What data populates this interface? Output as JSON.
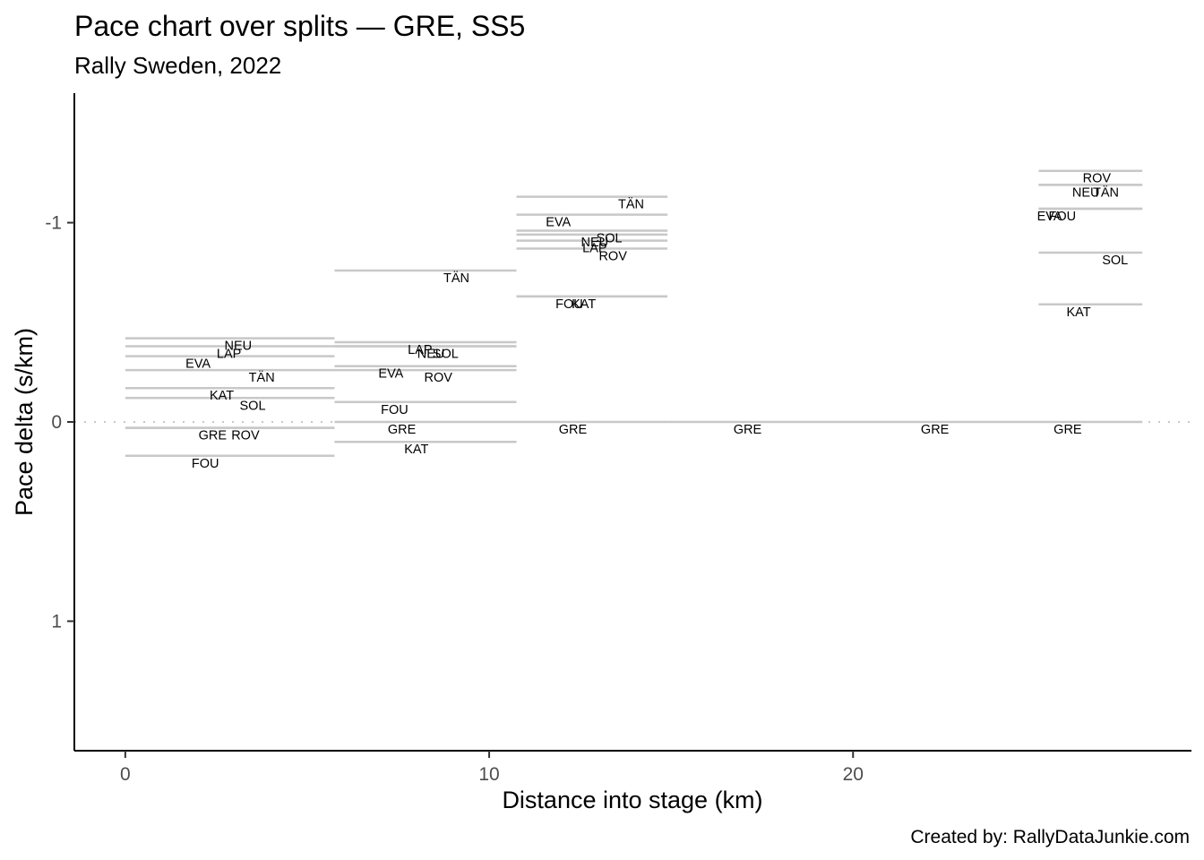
{
  "chart_data": {
    "type": "segment",
    "title": "Pace chart over splits — GRE, SS5",
    "subtitle": "Rally Sweden, 2022",
    "xlabel": "Distance into stage (km)",
    "ylabel": "Pace delta (s/km)",
    "caption": "Created by: RallyDataJunkie.com",
    "xlim": [
      -1.4,
      29.3
    ],
    "ylim": [
      1.65,
      -1.65
    ],
    "y_reversed": true,
    "xticks": [
      0,
      10,
      20
    ],
    "xtick_labels": [
      "0",
      "10",
      "20"
    ],
    "yticks": [
      -1,
      0,
      1
    ],
    "ytick_labels": [
      "-1",
      "0",
      "1"
    ],
    "reference_line": {
      "y": 0,
      "style": "dotted"
    },
    "line_color": "#c8c8c8",
    "splits": [
      {
        "x_start": 0,
        "x_end": 5.75,
        "points": [
          {
            "driver": "NEU",
            "delta": -0.42,
            "label_x": 3.1
          },
          {
            "driver": "LAP",
            "delta": -0.38,
            "label_x": 2.85
          },
          {
            "driver": "EVA",
            "delta": -0.33,
            "label_x": 2.0
          },
          {
            "driver": "TÄN",
            "delta": -0.26,
            "label_x": 3.75
          },
          {
            "driver": "KAT",
            "delta": -0.17,
            "label_x": 2.65
          },
          {
            "driver": "SOL",
            "delta": -0.12,
            "label_x": 3.5
          },
          {
            "driver": "GRE",
            "delta": 0.03,
            "label_x": 2.4
          },
          {
            "driver": "ROV",
            "delta": 0.03,
            "label_x": 3.3
          },
          {
            "driver": "FOU",
            "delta": 0.17,
            "label_x": 2.2
          }
        ]
      },
      {
        "x_start": 5.75,
        "x_end": 10.75,
        "points": [
          {
            "driver": "TÄN",
            "delta": -0.76,
            "label_x": 9.1
          },
          {
            "driver": "LAP",
            "delta": -0.4,
            "label_x": 8.1
          },
          {
            "driver": "NEU",
            "delta": -0.38,
            "label_x": 8.4
          },
          {
            "driver": "SOL",
            "delta": -0.38,
            "label_x": 8.8
          },
          {
            "driver": "EVA",
            "delta": -0.28,
            "label_x": 7.3
          },
          {
            "driver": "ROV",
            "delta": -0.26,
            "label_x": 8.6
          },
          {
            "driver": "FOU",
            "delta": -0.1,
            "label_x": 7.4
          },
          {
            "driver": "GRE",
            "delta": 0.0,
            "label_x": 7.6
          },
          {
            "driver": "KAT",
            "delta": 0.1,
            "label_x": 8.0
          }
        ]
      },
      {
        "x_start": 10.75,
        "x_end": 14.9,
        "points": [
          {
            "driver": "TÄN",
            "delta": -1.13,
            "label_x": 13.9
          },
          {
            "driver": "EVA",
            "delta": -1.04,
            "label_x": 11.9
          },
          {
            "driver": "SOL",
            "delta": -0.96,
            "label_x": 13.3
          },
          {
            "driver": "NEU",
            "delta": -0.94,
            "label_x": 12.9
          },
          {
            "driver": "LAP",
            "delta": -0.91,
            "label_x": 12.9
          },
          {
            "driver": "ROV",
            "delta": -0.87,
            "label_x": 13.4
          },
          {
            "driver": "FOU",
            "delta": -0.63,
            "label_x": 12.2
          },
          {
            "driver": "KAT",
            "delta": -0.63,
            "label_x": 12.6
          },
          {
            "driver": "GRE",
            "delta": 0.0,
            "label_x": 12.3
          }
        ]
      },
      {
        "x_start": 14.9,
        "x_end": 25.1,
        "points": [
          {
            "driver": "GRE",
            "delta": 0.0,
            "label_x": 17.1
          }
        ]
      },
      {
        "x_start": 25.1,
        "x_end": 27.95,
        "points": [
          {
            "driver": "ROV",
            "delta": -1.26,
            "label_x": 26.7
          },
          {
            "driver": "NEU",
            "delta": -1.19,
            "label_x": 26.4
          },
          {
            "driver": "TÄN",
            "delta": -1.19,
            "label_x": 26.95
          },
          {
            "driver": "EVA",
            "delta": -1.07,
            "label_x": 25.4
          },
          {
            "driver": "FOU",
            "delta": -1.07,
            "label_x": 25.75
          },
          {
            "driver": "SOL",
            "delta": -0.85,
            "label_x": 27.2
          },
          {
            "driver": "KAT",
            "delta": -0.59,
            "label_x": 26.2
          },
          {
            "driver": "GRE",
            "delta": 0.0,
            "label_x": 25.9
          }
        ]
      }
    ],
    "extra_labels": [
      {
        "driver": "GRE",
        "delta": 0.0,
        "label_x": 22.25
      }
    ]
  }
}
